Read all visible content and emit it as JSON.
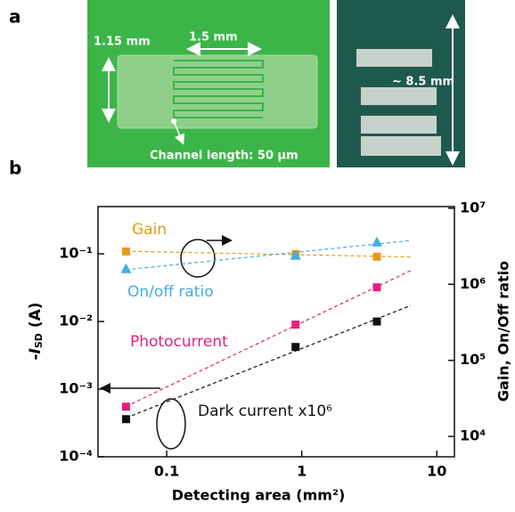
{
  "panels": {
    "a": "a",
    "b": "b"
  },
  "photo_left": {
    "height_label": "1.15 mm",
    "width_label": "1.5 mm",
    "channel_label": "Channel length: 50 µm"
  },
  "photo_right": {
    "length_label": "~ 8.5 mm"
  },
  "chart_data": {
    "type": "scatter",
    "x_label": "Detecting area (mm²)",
    "y_label": {
      "prefix": "-",
      "var": "I",
      "sub": "SD",
      "unit": " (A)"
    },
    "y2_label": "Gain, On/Off ratio",
    "log_x": true,
    "log_y": true,
    "log_y2": true,
    "xlim": [
      0.031,
      13.5
    ],
    "xticks": [
      0.1,
      1,
      10
    ],
    "ylim": [
      0.0001,
      0.5
    ],
    "yticks": [
      {
        "value": 0.0001,
        "label": "10⁻⁴"
      },
      {
        "value": 0.001,
        "label": "10⁻³"
      },
      {
        "value": 0.01,
        "label": "10⁻²"
      },
      {
        "value": 0.1,
        "label": "10⁻¹"
      }
    ],
    "y2lim": [
      5400,
      10500000
    ],
    "y2ticks": [
      {
        "value": 10000,
        "label": "10⁴"
      },
      {
        "value": 100000,
        "label": "10⁵"
      },
      {
        "value": 1000000,
        "label": "10⁶"
      },
      {
        "value": 10000000,
        "label": "10⁷"
      }
    ],
    "x": [
      0.05,
      0.9,
      3.6
    ],
    "series": [
      {
        "name": "Gain",
        "color": "#e89a1c",
        "marker": "square",
        "axis": "y2",
        "values": [
          2700000,
          2500000,
          2300000
        ]
      },
      {
        "name": "On/off ratio",
        "color": "#45ace0",
        "marker": "triangle",
        "axis": "y2",
        "values": [
          1600000,
          2400000,
          3600000
        ]
      },
      {
        "name": "Photocurrent",
        "color": "#e5207c",
        "marker": "square",
        "values": [
          0.00055,
          0.009,
          0.032
        ]
      },
      {
        "name": "Dark current x10⁶",
        "color": "#111111",
        "marker": "square",
        "values": [
          0.00036,
          0.0042,
          0.01
        ]
      }
    ]
  }
}
